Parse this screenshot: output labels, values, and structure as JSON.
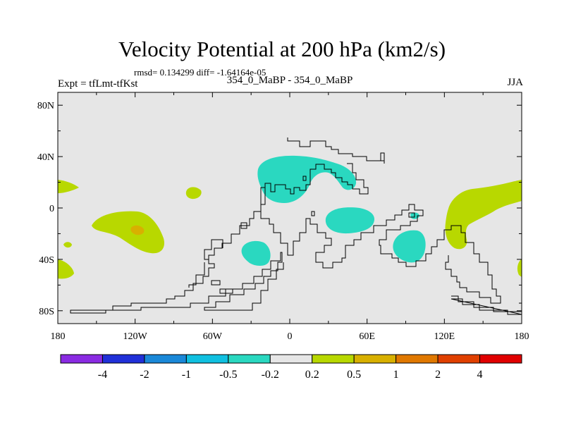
{
  "title": "Velocity Potential at 200 hPa (km2/s)",
  "stats": "rmsd= 0.134299  diff= -1.64164e-05",
  "left_label": "Expt = tfLmt-tfKst",
  "center_label": "354_0_MaBP - 354_0_MaBP",
  "right_label": "JJA",
  "map": {
    "lon_range": [
      -180,
      180
    ],
    "lat_range": [
      -90,
      90
    ],
    "background_color": "#e6e6e6",
    "x_ticks": [
      {
        "lon": -180,
        "label": "180"
      },
      {
        "lon": -120,
        "label": "120W"
      },
      {
        "lon": -60,
        "label": "60W"
      },
      {
        "lon": 0,
        "label": "0"
      },
      {
        "lon": 60,
        "label": "60E"
      },
      {
        "lon": 120,
        "label": "120E"
      },
      {
        "lon": 180,
        "label": "180"
      }
    ],
    "y_ticks": [
      {
        "lat": 80,
        "label": "80N"
      },
      {
        "lat": 40,
        "label": "40N"
      },
      {
        "lat": 0,
        "label": "0"
      },
      {
        "lat": -40,
        "label": "40S"
      },
      {
        "lat": -80,
        "label": "80S"
      }
    ]
  },
  "colorbar": {
    "boxes": [
      "#8a2be2",
      "#2030d8",
      "#1a88d8",
      "#10c0e0",
      "#2ad8c0",
      "#e6e6e6",
      "#b8d800",
      "#d8b000",
      "#e07800",
      "#e04000",
      "#e00000"
    ],
    "labels": [
      "-4",
      "-2",
      "-1",
      "-0.5",
      "-0.2",
      "0.2",
      "0.5",
      "1",
      "2",
      "4"
    ]
  },
  "fields": [
    {
      "name": "pacific-positive",
      "color": "#b8d800",
      "sign": "+",
      "lon": -120,
      "lat": -15
    },
    {
      "name": "pacific-max",
      "color": "#d8b000",
      "sign": "++",
      "lon": -118,
      "lat": -17
    },
    {
      "name": "eurasia-negative",
      "color": "#2ad8c0",
      "sign": "-",
      "lon": 12,
      "lat": 30
    },
    {
      "name": "africa-negative",
      "color": "#2ad8c0",
      "sign": "-",
      "lon": 42,
      "lat": -8
    },
    {
      "name": "indian-ocean-negative",
      "color": "#2ad8c0",
      "sign": "-",
      "lon": 96,
      "lat": -30
    },
    {
      "name": "atlantic-negative",
      "color": "#2ad8c0",
      "sign": "-",
      "lon": -27,
      "lat": -35
    },
    {
      "name": "west-pacific-positive",
      "color": "#b8d800",
      "sign": "+",
      "lon": 150,
      "lat": 5
    }
  ]
}
